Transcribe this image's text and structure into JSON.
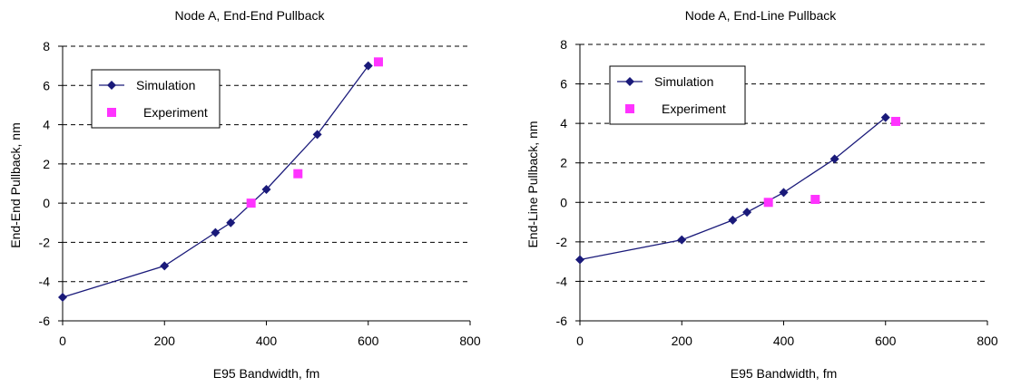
{
  "chart_data": [
    {
      "type": "scatter",
      "title": "Node A, End-End Pullback",
      "xlabel": "E95 Bandwidth, fm",
      "ylabel": "End-End Pullback, nm",
      "xlim": [
        0,
        800
      ],
      "ylim": [
        -6,
        8
      ],
      "xticks": [
        "0",
        "200",
        "400",
        "600",
        "800"
      ],
      "yticks": [
        "8",
        "6",
        "4",
        "2",
        "0",
        "-2",
        "-4",
        "-6"
      ],
      "grid": "horizontal-dashed",
      "legend_placement": "top-left",
      "series": [
        {
          "name": "Simulation",
          "style": "line-diamond",
          "color": "#1a1a7a",
          "points": [
            [
              0,
              -4.8
            ],
            [
              200,
              -3.2
            ],
            [
              300,
              -1.5
            ],
            [
              330,
              -1.0
            ],
            [
              400,
              0.7
            ],
            [
              500,
              3.5
            ],
            [
              600,
              7.0
            ]
          ]
        },
        {
          "name": "Experiment",
          "style": "square",
          "color": "#ff33ff",
          "points": [
            [
              370,
              0.0
            ],
            [
              462,
              1.5
            ],
            [
              620,
              7.2
            ]
          ]
        }
      ]
    },
    {
      "type": "scatter",
      "title": "Node A, End-Line Pullback",
      "xlabel": "E95 Bandwidth, fm",
      "ylabel": "End-Line Pullback, nm",
      "xlim": [
        0,
        800
      ],
      "ylim": [
        -6,
        8
      ],
      "xticks": [
        "0",
        "200",
        "400",
        "600",
        "800"
      ],
      "yticks": [
        "8",
        "6",
        "4",
        "2",
        "0",
        "-2",
        "-4",
        "-6"
      ],
      "grid": "horizontal-dashed",
      "legend_placement": "top-left",
      "series": [
        {
          "name": "Simulation",
          "style": "line-diamond",
          "color": "#1a1a7a",
          "points": [
            [
              0,
              -2.9
            ],
            [
              200,
              -1.9
            ],
            [
              300,
              -0.9
            ],
            [
              328,
              -0.5
            ],
            [
              400,
              0.5
            ],
            [
              500,
              2.2
            ],
            [
              600,
              4.3
            ]
          ]
        },
        {
          "name": "Experiment",
          "style": "square",
          "color": "#ff33ff",
          "points": [
            [
              370,
              0.0
            ],
            [
              462,
              0.15
            ],
            [
              620,
              4.1
            ]
          ]
        }
      ]
    }
  ]
}
